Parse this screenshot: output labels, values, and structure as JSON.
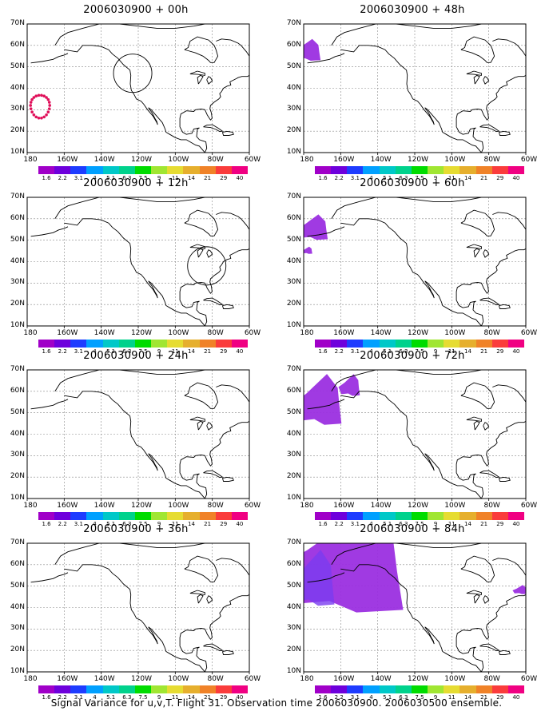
{
  "panels": [
    {
      "title": "2006030900 + 00h",
      "overlays": [
        {
          "type": "ring",
          "color": "#e0105a",
          "lon": -173,
          "lat": 32
        },
        {
          "type": "circle",
          "lon": -123,
          "lat": 47
        }
      ]
    },
    {
      "title": "2006030900 + 48h",
      "overlays": [
        {
          "type": "blob",
          "color": "#9b2fe0",
          "lon": -178,
          "lat": 57
        }
      ]
    },
    {
      "title": "2006030900 + 12h",
      "overlays": [
        {
          "type": "circle",
          "lon": -83,
          "lat": 38
        }
      ]
    },
    {
      "title": "2006030900 + 60h",
      "overlays": [
        {
          "type": "blob",
          "color": "#9b2fe0",
          "lon": -175,
          "lat": 55
        },
        {
          "type": "blob",
          "color": "#9b2fe0",
          "lon": -178,
          "lat": 45
        }
      ]
    },
    {
      "title": "2006030900 + 24h",
      "overlays": []
    },
    {
      "title": "2006030900 + 72h",
      "overlays": [
        {
          "type": "blob",
          "color": "#9b2fe0",
          "lon": -172,
          "lat": 54
        },
        {
          "type": "blob",
          "color": "#9b2fe0",
          "lon": -155,
          "lat": 62
        }
      ]
    },
    {
      "title": "2006030900 + 36h",
      "overlays": []
    },
    {
      "title": "2006030900 + 84h",
      "overlays": [
        {
          "type": "blob",
          "color": "#9b2fe0",
          "lon": -160,
          "lat": 57
        },
        {
          "type": "blob",
          "color": "#9b2fe0",
          "lon": -63,
          "lat": 48
        }
      ]
    }
  ],
  "map": {
    "lat_labels": [
      "70N",
      "60N",
      "50N",
      "40N",
      "30N",
      "20N",
      "10N"
    ],
    "lon_labels": [
      "180",
      "160W",
      "140W",
      "120W",
      "100W",
      "80W",
      "60W"
    ]
  },
  "colorbar": {
    "colors": [
      "#a000c8",
      "#6e00dc",
      "#1e3cff",
      "#00a0ff",
      "#00c8c8",
      "#00d28c",
      "#00dc00",
      "#a0e632",
      "#e6dc32",
      "#e6af2d",
      "#f08228",
      "#fa3c3c",
      "#f00082"
    ],
    "labels": [
      "1.6",
      "2.2",
      "3.1",
      "4",
      "5.1",
      "6.3",
      "7.5",
      "9",
      "11",
      "14",
      "21",
      "29",
      "40"
    ]
  },
  "footer": "Signal Variance for u,v,T. Flight 31. Observation time 2006030900. 2006030500 ensemble."
}
